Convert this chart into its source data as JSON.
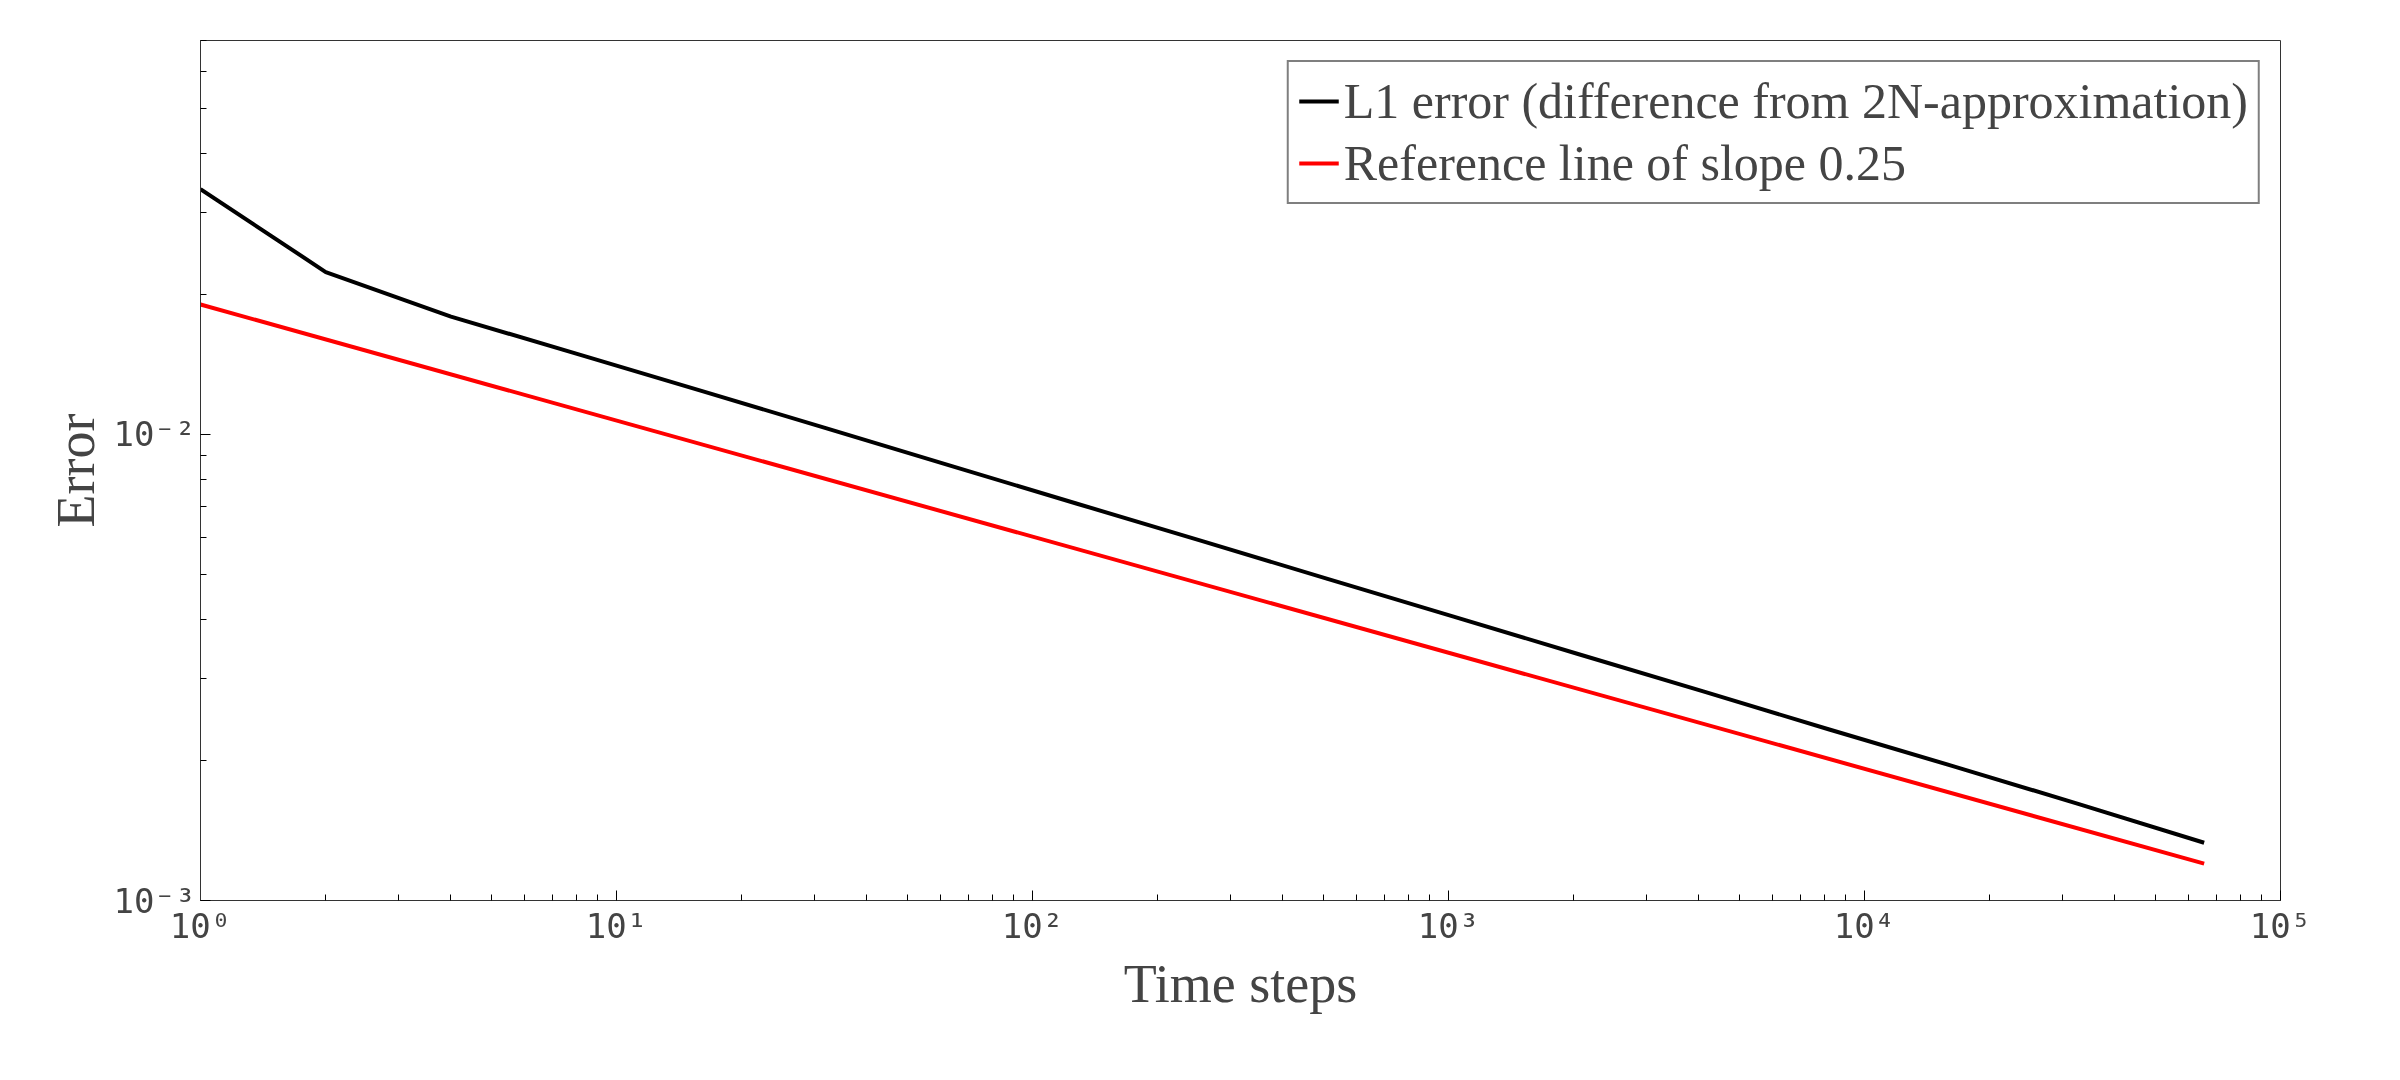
{
  "chart_data": {
    "type": "line",
    "xlabel": "Time steps",
    "ylabel": "Error",
    "log": "xy",
    "grid": false,
    "legend": "top right",
    "line_style": "solid",
    "marker": "none",
    "xlim": [
      1,
      100000
    ],
    "ylim": [
      0.001,
      0.07
    ],
    "xticks": [
      {
        "value": 1,
        "label": "10⁰"
      },
      {
        "value": 10,
        "label": "10¹"
      },
      {
        "value": 100,
        "label": "10²"
      },
      {
        "value": 1000,
        "label": "10³"
      },
      {
        "value": 10000,
        "label": "10⁴"
      },
      {
        "value": 100000,
        "label": "10⁵"
      }
    ],
    "yticks": [
      {
        "value": 0.001,
        "label": "10⁻³"
      },
      {
        "value": 0.01,
        "label": "10⁻²"
      }
    ],
    "series": [
      {
        "name": "L1 error (difference from 2N-approximation)",
        "color": "#000000",
        "x": [
          1,
          2,
          4,
          8,
          16,
          32,
          64,
          128,
          256,
          512,
          1024,
          2048,
          4096,
          8192,
          16384,
          32768,
          65536
        ],
        "values": [
          0.0336,
          0.0223,
          0.0179,
          0.0149,
          0.0124,
          0.0103,
          0.00855,
          0.0071,
          0.0059,
          0.0049,
          0.00407,
          0.00338,
          0.00281,
          0.00233,
          0.00194,
          0.00161,
          0.00133
        ]
      },
      {
        "name": "Reference line of slope 0.25",
        "color": "#ff0000",
        "x": [
          1,
          65536
        ],
        "values": [
          0.019,
          0.0012
        ]
      }
    ]
  }
}
